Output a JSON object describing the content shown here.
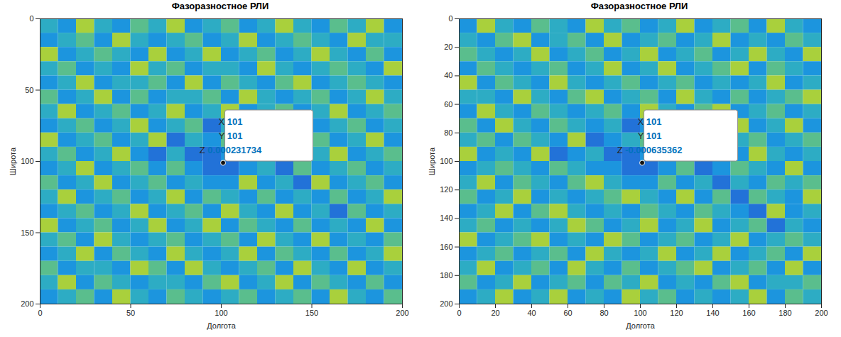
{
  "chart_data": [
    {
      "type": "heatmap",
      "title": "Фазоразностное РЛИ",
      "x_label": "Долгота",
      "y_label": "Широта",
      "xlim": [
        0,
        200
      ],
      "ylim": [
        200,
        0
      ],
      "xticks": [
        0,
        50,
        100,
        150,
        200
      ],
      "yticks": [
        0,
        50,
        100,
        150,
        200
      ],
      "grid": false,
      "zlim": [
        -0.002,
        0.002
      ],
      "colors": [
        "#2272d8",
        "#1aa0e0",
        "#3fb8a8",
        "#a9d03c"
      ],
      "datatip": {
        "x": 101,
        "y": 101,
        "z": 0.000231734,
        "labels": [
          "X",
          "Y",
          "Z"
        ]
      },
      "cells": [
        [
          0,
          -0.001,
          0.002,
          0,
          -0.001,
          0.001,
          0,
          0.002,
          -0.001,
          0,
          0.001,
          -0.001,
          0,
          0.002,
          0,
          -0.001,
          0.001,
          0,
          0.002,
          -0.001
        ],
        [
          -0.001,
          0,
          0.001,
          -0.001,
          0.002,
          0,
          -0.001,
          0,
          0.001,
          -0.001,
          0,
          0.002,
          -0.001,
          0,
          0.001,
          0,
          -0.001,
          0.002,
          0,
          0
        ],
        [
          0.002,
          -0.001,
          0,
          0.001,
          0,
          -0.001,
          0.002,
          -0.001,
          0,
          0.002,
          -0.001,
          0,
          0.001,
          -0.001,
          0,
          0.002,
          0,
          -0.001,
          0.001,
          -0.001
        ],
        [
          0,
          0.001,
          -0.001,
          0,
          -0.001,
          0.002,
          0,
          0.001,
          -0.001,
          0,
          0,
          -0.001,
          0.002,
          0,
          -0.001,
          0,
          0.001,
          0,
          -0.001,
          0.002
        ],
        [
          -0.001,
          0,
          0.002,
          -0.001,
          0,
          0,
          0.001,
          -0.001,
          0.002,
          -0.001,
          0.001,
          0,
          -0.001,
          0.001,
          0.002,
          -0.001,
          0,
          0.001,
          0,
          -0.001
        ],
        [
          0.001,
          -0.001,
          0,
          0.002,
          -0.001,
          0.001,
          -0.001,
          0,
          0,
          0.001,
          -0.001,
          0.002,
          0,
          -0.001,
          0,
          0.001,
          -0.001,
          0,
          0.002,
          0
        ],
        [
          0,
          0.002,
          -0.001,
          0,
          0.001,
          -0.001,
          0,
          0.002,
          -0.001,
          0,
          0.002,
          -0.001,
          0,
          0.001,
          -0.001,
          0,
          0.002,
          -0.001,
          0,
          0.001
        ],
        [
          -0.001,
          0,
          0.001,
          -0.001,
          0,
          0.002,
          -0.001,
          0,
          0.001,
          -0.002,
          0,
          0.001,
          -0.001,
          0,
          0.002,
          -0.001,
          0,
          0.001,
          -0.001,
          0
        ],
        [
          0.002,
          -0.001,
          0,
          0.001,
          -0.001,
          0,
          0.002,
          -0.002,
          0,
          -0.001,
          0.001,
          -0.001,
          0.002,
          -0.001,
          0,
          0.001,
          -0.001,
          0,
          0.002,
          -0.001
        ],
        [
          0,
          0.001,
          -0.001,
          0,
          0.002,
          -0.001,
          -0.002,
          0,
          -0.002,
          -0.002,
          -0.001,
          0,
          -0.001,
          0.001,
          -0.001,
          0,
          0.002,
          -0.001,
          0,
          0.001
        ],
        [
          -0.001,
          0,
          0.002,
          -0.001,
          0,
          0.001,
          -0.001,
          0.001,
          -0.001,
          -0.002,
          -0.002,
          -0.001,
          0,
          -0.002,
          0.001,
          -0.001,
          0,
          0.001,
          -0.001,
          0
        ],
        [
          0.001,
          -0.001,
          0,
          0.002,
          -0.001,
          0,
          0.001,
          -0.001,
          0,
          -0.001,
          -0.001,
          0.002,
          -0.001,
          0,
          -0.002,
          0.002,
          -0.001,
          0,
          0.001,
          -0.001
        ],
        [
          0,
          0.002,
          -0.001,
          0,
          0.001,
          -0.001,
          0,
          0.002,
          -0.001,
          0.001,
          0,
          -0.001,
          0.001,
          -0.001,
          0,
          -0.001,
          0.001,
          -0.001,
          0,
          0.002
        ],
        [
          -0.001,
          0,
          0.001,
          -0.001,
          0,
          0.002,
          -0.001,
          0,
          0.001,
          -0.001,
          0.002,
          0,
          -0.001,
          0.002,
          -0.001,
          0,
          -0.002,
          0.001,
          -0.001,
          0
        ],
        [
          0.002,
          -0.001,
          0,
          0.001,
          -0.001,
          0,
          0.002,
          -0.001,
          0,
          0.002,
          -0.001,
          0.001,
          0,
          -0.001,
          0.001,
          -0.001,
          0,
          -0.001,
          0.002,
          -0.001
        ],
        [
          0,
          0.001,
          -0.001,
          0.002,
          0,
          -0.001,
          0,
          0.001,
          -0.001,
          0,
          0.001,
          -0.001,
          0.002,
          0,
          -0.001,
          0.002,
          -0.001,
          0,
          -0.001,
          0.001
        ],
        [
          -0.001,
          0,
          0.002,
          -0.001,
          0.001,
          0,
          -0.001,
          0.002,
          0,
          -0.001,
          0,
          0.002,
          -0.001,
          0.001,
          0,
          -0.001,
          0.001,
          -0.001,
          0,
          0.002
        ],
        [
          0.001,
          -0.001,
          0,
          0,
          -0.001,
          0.002,
          0.001,
          -0.001,
          0.002,
          0,
          -0.001,
          0,
          0.001,
          -0.001,
          0.002,
          0,
          -0.001,
          0.002,
          -0.001,
          0
        ],
        [
          0,
          0.002,
          -0.001,
          0.001,
          0,
          -0.001,
          0,
          0,
          -0.001,
          0.001,
          0.002,
          -0.001,
          0,
          0.002,
          -0.001,
          0.001,
          0,
          -0.001,
          0.001,
          -0.001
        ],
        [
          -0.001,
          0,
          0.001,
          -0.001,
          0.002,
          0,
          -0.001,
          0.001,
          0,
          -0.001,
          0,
          0.001,
          -0.001,
          0,
          0.001,
          -0.001,
          0.002,
          0,
          -0.001,
          0.001
        ]
      ]
    },
    {
      "type": "heatmap",
      "title": "Фазоразностное РЛИ",
      "x_label": "Долгота",
      "y_label": "Широта",
      "xlim": [
        0,
        200
      ],
      "ylim": [
        200,
        0
      ],
      "xticks": [
        0,
        20,
        40,
        60,
        80,
        100,
        120,
        140,
        160,
        180,
        200
      ],
      "yticks": [
        0,
        20,
        40,
        60,
        80,
        100,
        120,
        140,
        160,
        180,
        200
      ],
      "grid": false,
      "zlim": [
        -0.002,
        0.002
      ],
      "colors": [
        "#2272d8",
        "#1aa0e0",
        "#3fb8a8",
        "#a9d03c"
      ],
      "datatip": {
        "x": 101,
        "y": 101,
        "z": -0.000635362,
        "labels": [
          "X",
          "Y",
          "Z"
        ]
      },
      "cells": [
        [
          -0.001,
          0.002,
          0,
          -0.001,
          0.001,
          0,
          -0.001,
          0.002,
          0,
          0.001,
          -0.001,
          0,
          0.002,
          -0.001,
          0,
          0.001,
          -0.001,
          0.002,
          0,
          -0.001
        ],
        [
          0,
          -0.001,
          0.001,
          0.002,
          -0.001,
          0,
          0.001,
          -0.001,
          0.002,
          -0.001,
          0,
          0.001,
          -0.001,
          0,
          0.002,
          -0.001,
          0,
          -0.001,
          0.001,
          0
        ],
        [
          0.001,
          0,
          -0.001,
          0,
          0.002,
          -0.001,
          0,
          0.001,
          -0.001,
          0,
          0.002,
          -0.001,
          0,
          0.001,
          -0.001,
          0,
          0.002,
          0,
          -0.001,
          0.002
        ],
        [
          -0.001,
          0.001,
          0,
          -0.001,
          0,
          0.001,
          -0.001,
          0,
          0.002,
          -0.001,
          0,
          0.002,
          -0.001,
          0,
          0.001,
          0.002,
          -0.001,
          0.001,
          0,
          -0.001
        ],
        [
          0.002,
          -0.001,
          0.001,
          0,
          -0.001,
          0.002,
          0,
          -0.001,
          0,
          0.001,
          -0.001,
          0,
          0.001,
          -0.001,
          0,
          -0.001,
          0,
          0.002,
          -0.001,
          0
        ],
        [
          0,
          0,
          -0.001,
          0.002,
          0,
          -0.001,
          0.001,
          0.002,
          -0.001,
          0,
          0.001,
          -0.001,
          0.002,
          0,
          -0.001,
          0.001,
          -0.001,
          0,
          0.001,
          0.002
        ],
        [
          -0.001,
          0.002,
          0,
          -0.001,
          0.001,
          0,
          -0.001,
          0,
          0.001,
          -0.001,
          0.002,
          0,
          -0.001,
          0.001,
          0.002,
          -0.001,
          0,
          0.001,
          -0.001,
          0
        ],
        [
          0.001,
          -0.001,
          0.002,
          0,
          -0.001,
          0.001,
          0,
          -0.001,
          0,
          -0.002,
          -0.001,
          0.001,
          0,
          -0.001,
          0,
          0.002,
          -0.001,
          0,
          0.002,
          -0.001
        ],
        [
          0,
          0.001,
          -0.001,
          0.001,
          0,
          -0.001,
          0.002,
          -0.002,
          -0.001,
          0,
          0.001,
          -0.001,
          0.002,
          0,
          -0.001,
          0,
          0.001,
          -0.001,
          0,
          0.001
        ],
        [
          0.002,
          -0.001,
          0,
          -0.001,
          0.002,
          -0.002,
          -0.001,
          0,
          -0.002,
          -0.002,
          -0.001,
          0,
          -0.001,
          0.002,
          0,
          -0.001,
          0.002,
          0,
          -0.001,
          0
        ],
        [
          -0.001,
          0,
          0.001,
          0,
          -0.001,
          0.001,
          0,
          -0.001,
          -0.001,
          -0.002,
          -0.002,
          -0.001,
          0.001,
          -0.002,
          -0.001,
          0.001,
          0,
          -0.001,
          0.002,
          -0.001
        ],
        [
          0,
          0.002,
          -0.001,
          0.001,
          0,
          -0.001,
          0.001,
          0.002,
          0,
          -0.001,
          -0.001,
          0.001,
          -0.001,
          0,
          -0.002,
          0,
          -0.001,
          0.001,
          0,
          0.001
        ],
        [
          0.001,
          -0.001,
          0,
          0.002,
          -0.001,
          0,
          -0.001,
          0,
          0.001,
          0.002,
          0,
          -0.001,
          0.002,
          -0.001,
          0.001,
          -0.002,
          0.001,
          0,
          -0.001,
          0.002
        ],
        [
          -0.001,
          0,
          0.002,
          -0.001,
          0.001,
          0.002,
          0,
          -0.001,
          0,
          -0.001,
          0.001,
          0,
          -0.001,
          0.001,
          0,
          -0.001,
          -0.002,
          0.002,
          -0.001,
          0
        ],
        [
          0,
          0.001,
          -0.001,
          0,
          -0.001,
          0,
          0.002,
          0.001,
          -0.001,
          0,
          0.002,
          -0.001,
          0,
          0.002,
          -0.001,
          0,
          0.001,
          -0.002,
          0,
          -0.001
        ],
        [
          0.002,
          -0.001,
          0,
          0.001,
          0.002,
          -0.001,
          0,
          -0.001,
          0.002,
          0.001,
          -0.001,
          0,
          0.001,
          -0.001,
          0,
          0.002,
          -0.001,
          0,
          0.001,
          0
        ],
        [
          -0.001,
          0,
          0.001,
          -0.001,
          0,
          0.001,
          -0.001,
          0.002,
          0,
          -0.001,
          0,
          0.002,
          -0.001,
          0,
          0.002,
          -0.001,
          0,
          0.001,
          -0.001,
          0.002
        ],
        [
          0,
          0.002,
          -0.001,
          0,
          0.001,
          -0.001,
          0.002,
          0,
          -0.001,
          0.001,
          -0.001,
          0,
          0.001,
          0.002,
          -0.001,
          0,
          0.001,
          -0.001,
          0.002,
          -0.001
        ],
        [
          0.001,
          -0.001,
          0,
          0.002,
          -0.001,
          0,
          0.001,
          -0.001,
          0.001,
          0,
          0.002,
          -0.001,
          0,
          -0.001,
          0.001,
          0.002,
          -0.001,
          0,
          0,
          0.001
        ],
        [
          -0.001,
          0,
          0.002,
          -0.001,
          0,
          0.002,
          -0.001,
          0,
          -0.001,
          0.002,
          0,
          0.001,
          -0.001,
          0,
          -0.001,
          0,
          0.002,
          -0.001,
          0.001,
          0
        ]
      ]
    }
  ]
}
